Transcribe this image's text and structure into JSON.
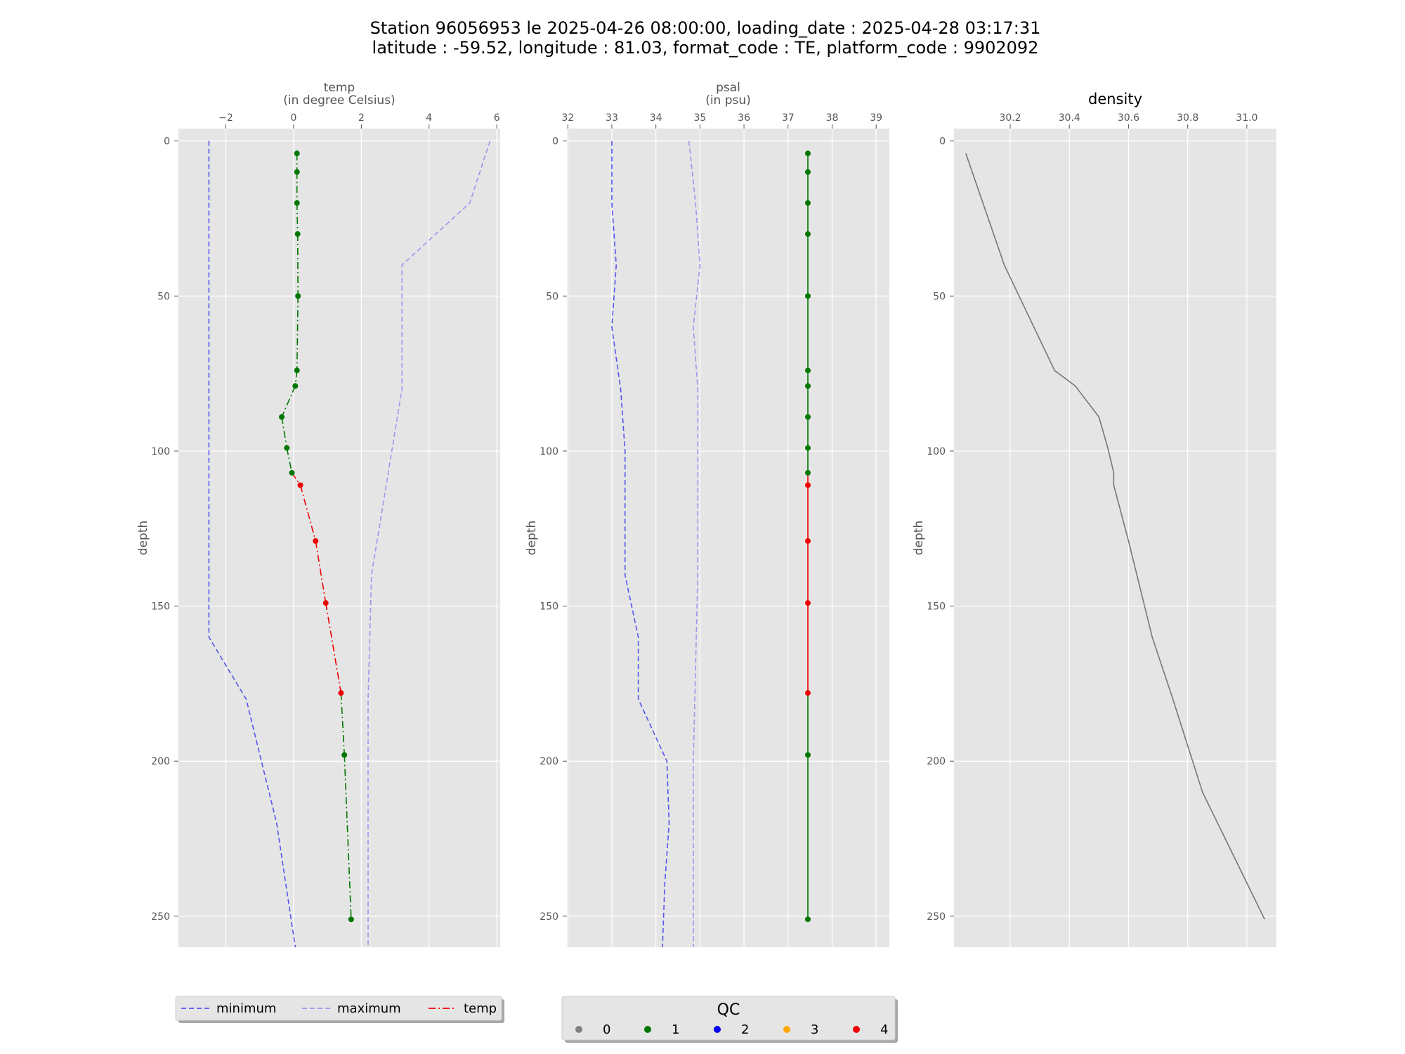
{
  "figure": {
    "title_line1": "Station 96056953 le 2025-04-26 08:00:00, loading_date : 2025-04-28 03:17:31",
    "title_line2": "latitude : -59.52, longitude : 81.03, format_code : TE, platform_code : 9902092"
  },
  "colors": {
    "panel_bg": "#e5e5e5",
    "grid": "#ffffff",
    "minimum": "#5555ee",
    "maximum": "#9999ee",
    "density": "#777777",
    "qc": {
      "0": "#808080",
      "1": "#007700",
      "2": "#0000ee",
      "3": "#ffa500",
      "4": "#ee0000"
    }
  },
  "chart_data": [
    {
      "type": "line",
      "id": "temp",
      "xlabel_line1": "temp",
      "xlabel_line2": "(in degree Celsius)",
      "ylabel": "depth",
      "xlim": [
        -3.4,
        6.1
      ],
      "ylim": [
        260,
        -4
      ],
      "xticks": [
        -2,
        0,
        2,
        4,
        6
      ],
      "xtick_labels": [
        "−2",
        "0",
        "2",
        "4",
        "6"
      ],
      "yticks": [
        0,
        50,
        100,
        150,
        200,
        250
      ],
      "grid": true,
      "y_inverted": true,
      "series": [
        {
          "name": "minimum",
          "style": "dashed",
          "color_key": "minimum",
          "points": [
            [
              -2.5,
              0
            ],
            [
              -2.5,
              160
            ],
            [
              -1.4,
              180
            ],
            [
              -0.5,
              220
            ],
            [
              0.05,
              260
            ]
          ]
        },
        {
          "name": "maximum",
          "style": "dashed",
          "color_key": "maximum",
          "points": [
            [
              5.8,
              0
            ],
            [
              5.2,
              20
            ],
            [
              3.2,
              40
            ],
            [
              3.2,
              80
            ],
            [
              2.3,
              140
            ],
            [
              2.2,
              180
            ],
            [
              2.2,
              260
            ]
          ]
        },
        {
          "name": "temp",
          "style": "dashdot",
          "qc_colored": true,
          "points": [
            [
              0.1,
              4,
              1
            ],
            [
              0.1,
              10,
              1
            ],
            [
              0.1,
              20,
              1
            ],
            [
              0.12,
              30,
              1
            ],
            [
              0.13,
              50,
              1
            ],
            [
              0.1,
              74,
              1
            ],
            [
              0.05,
              79,
              1
            ],
            [
              -0.35,
              89,
              1
            ],
            [
              -0.2,
              99,
              1
            ],
            [
              -0.05,
              107,
              1
            ],
            [
              0.2,
              111,
              4
            ],
            [
              0.65,
              129,
              4
            ],
            [
              0.95,
              149,
              4
            ],
            [
              1.4,
              178,
              4
            ],
            [
              1.5,
              198,
              1
            ],
            [
              1.7,
              251,
              1
            ]
          ]
        }
      ]
    },
    {
      "type": "line",
      "id": "psal",
      "xlabel_line1": "psal",
      "xlabel_line2": "(in psu)",
      "ylabel": "depth",
      "xlim": [
        31.98,
        39.3
      ],
      "ylim": [
        260,
        -4
      ],
      "xticks": [
        32,
        33,
        34,
        35,
        36,
        37,
        38,
        39
      ],
      "xtick_labels": [
        "32",
        "33",
        "34",
        "35",
        "36",
        "37",
        "38",
        "39"
      ],
      "yticks": [
        0,
        50,
        100,
        150,
        200,
        250
      ],
      "grid": true,
      "y_inverted": true,
      "series": [
        {
          "name": "minimum",
          "style": "dashed",
          "color_key": "minimum",
          "points": [
            [
              33.0,
              0
            ],
            [
              33.0,
              20
            ],
            [
              33.1,
              40
            ],
            [
              33.0,
              60
            ],
            [
              33.2,
              80
            ],
            [
              33.3,
              100
            ],
            [
              33.3,
              140
            ],
            [
              33.6,
              160
            ],
            [
              33.6,
              180
            ],
            [
              34.25,
              200
            ],
            [
              34.3,
              220
            ],
            [
              34.2,
              240
            ],
            [
              34.15,
              260
            ]
          ]
        },
        {
          "name": "maximum",
          "style": "dashed",
          "color_key": "maximum",
          "points": [
            [
              34.75,
              0
            ],
            [
              34.9,
              20
            ],
            [
              35.0,
              40
            ],
            [
              34.85,
              60
            ],
            [
              34.95,
              80
            ],
            [
              34.95,
              140
            ],
            [
              34.85,
              200
            ],
            [
              34.85,
              260
            ]
          ]
        },
        {
          "name": "psal",
          "style": "solid",
          "qc_colored": true,
          "points": [
            [
              37.45,
              4,
              1
            ],
            [
              37.45,
              10,
              1
            ],
            [
              37.45,
              20,
              1
            ],
            [
              37.45,
              30,
              1
            ],
            [
              37.45,
              50,
              1
            ],
            [
              37.45,
              74,
              1
            ],
            [
              37.45,
              79,
              1
            ],
            [
              37.45,
              89,
              1
            ],
            [
              37.45,
              99,
              1
            ],
            [
              37.45,
              107,
              1
            ],
            [
              37.45,
              111,
              4
            ],
            [
              37.45,
              129,
              4
            ],
            [
              37.45,
              149,
              4
            ],
            [
              37.45,
              178,
              4
            ],
            [
              37.45,
              198,
              1
            ],
            [
              37.45,
              251,
              1
            ]
          ]
        }
      ]
    },
    {
      "type": "line",
      "id": "density",
      "title": "density",
      "ylabel": "depth",
      "xlim": [
        30.01,
        31.1
      ],
      "ylim": [
        260,
        -4
      ],
      "xticks": [
        30.2,
        30.4,
        30.6,
        30.8,
        31.0
      ],
      "xtick_labels": [
        "30.2",
        "30.4",
        "30.6",
        "30.8",
        "31.0"
      ],
      "yticks": [
        0,
        50,
        100,
        150,
        200,
        250
      ],
      "grid": true,
      "y_inverted": true,
      "series": [
        {
          "name": "density",
          "style": "solid",
          "color_key": "density",
          "points": [
            [
              30.05,
              4
            ],
            [
              30.18,
              40
            ],
            [
              30.35,
              74
            ],
            [
              30.42,
              79
            ],
            [
              30.5,
              89
            ],
            [
              30.53,
              99
            ],
            [
              30.55,
              107
            ],
            [
              30.55,
              111
            ],
            [
              30.6,
              129
            ],
            [
              30.68,
              160
            ],
            [
              30.75,
              180
            ],
            [
              30.85,
              210
            ],
            [
              31.06,
              251
            ]
          ]
        }
      ]
    }
  ],
  "legend_profile": {
    "entries": [
      {
        "label": "minimum",
        "style": "dashed",
        "color_key": "minimum"
      },
      {
        "label": "maximum",
        "style": "dashed",
        "color_key": "maximum"
      },
      {
        "label": "temp",
        "style": "dashdot",
        "color_hex": "#ee0000"
      }
    ]
  },
  "legend_qc": {
    "title": "QC",
    "entries": [
      {
        "label": "0",
        "color_key": "0"
      },
      {
        "label": "1",
        "color_key": "1"
      },
      {
        "label": "2",
        "color_key": "2"
      },
      {
        "label": "3",
        "color_key": "3"
      },
      {
        "label": "4",
        "color_key": "4"
      }
    ]
  }
}
